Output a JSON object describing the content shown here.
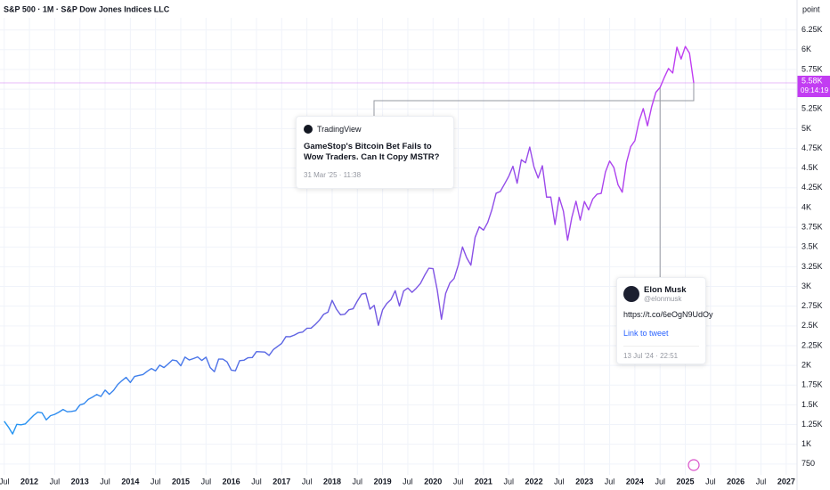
{
  "chart_data": {
    "type": "line",
    "title": "S&P 500 · 1M · S&P Dow Jones Indices LLC",
    "y_unit": "point",
    "x": [
      "2011-07",
      "2011-08",
      "2011-09",
      "2011-10",
      "2011-11",
      "2011-12",
      "2012-01",
      "2012-02",
      "2012-03",
      "2012-04",
      "2012-05",
      "2012-06",
      "2012-07",
      "2012-08",
      "2012-09",
      "2012-10",
      "2012-11",
      "2012-12",
      "2013-01",
      "2013-02",
      "2013-03",
      "2013-04",
      "2013-05",
      "2013-06",
      "2013-07",
      "2013-08",
      "2013-09",
      "2013-10",
      "2013-11",
      "2013-12",
      "2014-01",
      "2014-02",
      "2014-03",
      "2014-04",
      "2014-05",
      "2014-06",
      "2014-07",
      "2014-08",
      "2014-09",
      "2014-10",
      "2014-11",
      "2014-12",
      "2015-01",
      "2015-02",
      "2015-03",
      "2015-04",
      "2015-05",
      "2015-06",
      "2015-07",
      "2015-08",
      "2015-09",
      "2015-10",
      "2015-11",
      "2015-12",
      "2016-01",
      "2016-02",
      "2016-03",
      "2016-04",
      "2016-05",
      "2016-06",
      "2016-07",
      "2016-08",
      "2016-09",
      "2016-10",
      "2016-11",
      "2016-12",
      "2017-01",
      "2017-02",
      "2017-03",
      "2017-04",
      "2017-05",
      "2017-06",
      "2017-07",
      "2017-08",
      "2017-09",
      "2017-10",
      "2017-11",
      "2017-12",
      "2018-01",
      "2018-02",
      "2018-03",
      "2018-04",
      "2018-05",
      "2018-06",
      "2018-07",
      "2018-08",
      "2018-09",
      "2018-10",
      "2018-11",
      "2018-12",
      "2019-01",
      "2019-02",
      "2019-03",
      "2019-04",
      "2019-05",
      "2019-06",
      "2019-07",
      "2019-08",
      "2019-09",
      "2019-10",
      "2019-11",
      "2019-12",
      "2020-01",
      "2020-02",
      "2020-03",
      "2020-04",
      "2020-05",
      "2020-06",
      "2020-07",
      "2020-08",
      "2020-09",
      "2020-10",
      "2020-11",
      "2020-12",
      "2021-01",
      "2021-02",
      "2021-03",
      "2021-04",
      "2021-05",
      "2021-06",
      "2021-07",
      "2021-08",
      "2021-09",
      "2021-10",
      "2021-11",
      "2021-12",
      "2022-01",
      "2022-02",
      "2022-03",
      "2022-04",
      "2022-05",
      "2022-06",
      "2022-07",
      "2022-08",
      "2022-09",
      "2022-10",
      "2022-11",
      "2022-12",
      "2023-01",
      "2023-02",
      "2023-03",
      "2023-04",
      "2023-05",
      "2023-06",
      "2023-07",
      "2023-08",
      "2023-09",
      "2023-10",
      "2023-11",
      "2023-12",
      "2024-01",
      "2024-02",
      "2024-03",
      "2024-04",
      "2024-05",
      "2024-06",
      "2024-07",
      "2024-08",
      "2024-09",
      "2024-10",
      "2024-11",
      "2024-12",
      "2025-01",
      "2025-02",
      "2025-03"
    ],
    "series": [
      {
        "name": "S&P 500",
        "colors": [
          "#2196f3",
          "#6a5be0",
          "#c23cf2"
        ],
        "values": [
          1292,
          1219,
          1131,
          1253,
          1247,
          1258,
          1312,
          1366,
          1408,
          1398,
          1310,
          1362,
          1379,
          1407,
          1441,
          1412,
          1416,
          1426,
          1498,
          1515,
          1569,
          1598,
          1631,
          1606,
          1686,
          1633,
          1682,
          1757,
          1806,
          1848,
          1783,
          1859,
          1872,
          1884,
          1924,
          1960,
          1931,
          2003,
          1972,
          2018,
          2068,
          2059,
          1995,
          2105,
          2068,
          2086,
          2107,
          2063,
          2104,
          1972,
          1920,
          2079,
          2080,
          2044,
          1940,
          1932,
          2060,
          2065,
          2097,
          2099,
          2174,
          2171,
          2168,
          2126,
          2199,
          2239,
          2279,
          2364,
          2363,
          2384,
          2412,
          2423,
          2470,
          2472,
          2519,
          2575,
          2648,
          2674,
          2824,
          2714,
          2641,
          2648,
          2705,
          2718,
          2816,
          2902,
          2914,
          2712,
          2760,
          2507,
          2704,
          2784,
          2834,
          2946,
          2752,
          2942,
          2980,
          2926,
          2977,
          3038,
          3141,
          3231,
          3226,
          2954,
          2585,
          2912,
          3044,
          3100,
          3271,
          3500,
          3363,
          3270,
          3622,
          3756,
          3714,
          3811,
          3973,
          4181,
          4204,
          4298,
          4395,
          4523,
          4308,
          4605,
          4567,
          4766,
          4516,
          4374,
          4530,
          4132,
          4132,
          3785,
          4130,
          3955,
          3586,
          3872,
          4080,
          3840,
          4077,
          3970,
          4109,
          4169,
          4180,
          4450,
          4589,
          4508,
          4288,
          4194,
          4568,
          4770,
          4846,
          5096,
          5254,
          5036,
          5278,
          5460,
          5522,
          5648,
          5762,
          5705,
          6032,
          5882,
          6041,
          5955,
          5580
        ]
      }
    ],
    "xlim": [
      "2011-06",
      "2027-04"
    ],
    "xticks": [
      {
        "value": "2011-07",
        "label": "Jul"
      },
      {
        "value": "2012-01",
        "label": "2012"
      },
      {
        "value": "2012-07",
        "label": "Jul"
      },
      {
        "value": "2013-01",
        "label": "2013"
      },
      {
        "value": "2013-07",
        "label": "Jul"
      },
      {
        "value": "2014-01",
        "label": "2014"
      },
      {
        "value": "2014-07",
        "label": "Jul"
      },
      {
        "value": "2015-01",
        "label": "2015"
      },
      {
        "value": "2015-07",
        "label": "Jul"
      },
      {
        "value": "2016-01",
        "label": "2016"
      },
      {
        "value": "2016-07",
        "label": "Jul"
      },
      {
        "value": "2017-01",
        "label": "2017"
      },
      {
        "value": "2017-07",
        "label": "Jul"
      },
      {
        "value": "2018-01",
        "label": "2018"
      },
      {
        "value": "2018-07",
        "label": "Jul"
      },
      {
        "value": "2019-01",
        "label": "2019"
      },
      {
        "value": "2019-07",
        "label": "Jul"
      },
      {
        "value": "2020-01",
        "label": "2020"
      },
      {
        "value": "2020-07",
        "label": "Jul"
      },
      {
        "value": "2021-01",
        "label": "2021"
      },
      {
        "value": "2021-07",
        "label": "Jul"
      },
      {
        "value": "2022-01",
        "label": "2022"
      },
      {
        "value": "2022-07",
        "label": "Jul"
      },
      {
        "value": "2023-01",
        "label": "2023"
      },
      {
        "value": "2023-07",
        "label": "Jul"
      },
      {
        "value": "2024-01",
        "label": "2024"
      },
      {
        "value": "2024-07",
        "label": "Jul"
      },
      {
        "value": "2025-01",
        "label": "2025"
      },
      {
        "value": "2025-07",
        "label": "Jul"
      },
      {
        "value": "2026-01",
        "label": "2026"
      },
      {
        "value": "2026-07",
        "label": "Jul"
      },
      {
        "value": "2027-01",
        "label": "2027"
      }
    ],
    "ylim": [
      590,
      6630
    ],
    "yticks": [
      750,
      {
        "value": 1000,
        "label": "1K"
      },
      {
        "value": 1250,
        "label": "1.25K"
      },
      {
        "value": 1500,
        "label": "1.5K"
      },
      {
        "value": 1750,
        "label": "1.75K"
      },
      {
        "value": 2000,
        "label": "2K"
      },
      {
        "value": 2250,
        "label": "2.25K"
      },
      {
        "value": 2500,
        "label": "2.5K"
      },
      {
        "value": 2750,
        "label": "2.75K"
      },
      {
        "value": 3000,
        "label": "3K"
      },
      {
        "value": 3250,
        "label": "3.25K"
      },
      {
        "value": 3500,
        "label": "3.5K"
      },
      {
        "value": 3750,
        "label": "3.75K"
      },
      {
        "value": 4000,
        "label": "4K"
      },
      {
        "value": 4250,
        "label": "4.25K"
      },
      {
        "value": 4500,
        "label": "4.5K"
      },
      {
        "value": 4750,
        "label": "4.75K"
      },
      {
        "value": 5000,
        "label": "5K"
      },
      {
        "value": 5250,
        "label": "5.25K"
      },
      {
        "value": 5500,
        "label": "5.5K"
      },
      {
        "value": 5750,
        "label": "5.75K"
      },
      {
        "value": 6000,
        "label": "6K"
      },
      {
        "value": 6250,
        "label": "6.25K"
      }
    ],
    "grid": true,
    "last_price": {
      "value": 5580,
      "label": "5.58K",
      "countdown": "09:14:19",
      "color": "#c23cf2"
    },
    "annotations": [
      {
        "source": "TradingView",
        "headline": "GameStop's Bitcoin Bet Fails to Wow Traders. Can It Copy MSTR?",
        "date": "31 Mar '25 · 11:38",
        "x": "2025-03"
      },
      {
        "author": "Elon Musk",
        "handle": "@elonmusk",
        "text": "https://t.co/6eOgN9UdOy",
        "link": "Link to tweet",
        "date": "13 Jul '24 · 22:51",
        "x": "2024-07"
      }
    ]
  }
}
